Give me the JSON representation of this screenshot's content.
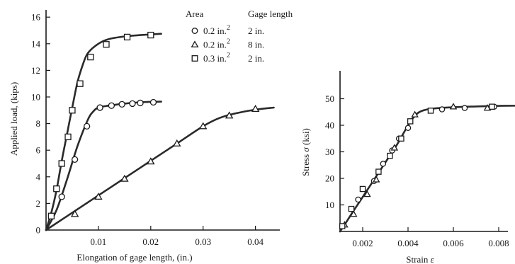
{
  "chart_data": [
    {
      "type": "line",
      "xlabel": "Elongation of gage length, (in.)",
      "ylabel": "Applied load, (kips)",
      "xlim": [
        0,
        0.044
      ],
      "ylim": [
        0,
        16
      ],
      "x_ticks": [
        0.01,
        0.02,
        0.03,
        0.04
      ],
      "x_tick_labels": [
        "0.01",
        "0.02",
        "0.03",
        "0.04"
      ],
      "y_ticks": [
        0,
        2,
        4,
        6,
        8,
        10,
        12,
        14,
        16
      ],
      "y_tick_labels": [
        "0",
        "2",
        "4",
        "6",
        "8",
        "10",
        "12",
        "14",
        "16"
      ],
      "legend": {
        "position": "top-right",
        "headers": [
          "Area",
          "Gage length"
        ],
        "entries": [
          {
            "marker": "circle",
            "area": "0.2 in.",
            "area_exp": "2",
            "gage": "2 in."
          },
          {
            "marker": "triangle",
            "area": "0.2 in.",
            "area_exp": "2",
            "gage": "8 in."
          },
          {
            "marker": "square",
            "area": "0.3 in.",
            "area_exp": "2",
            "gage": "2 in."
          }
        ]
      },
      "series": [
        {
          "marker": "square",
          "curve": [
            [
              0,
              0
            ],
            [
              0.001,
              1.3
            ],
            [
              0.002,
              3
            ],
            [
              0.003,
              5.2
            ],
            [
              0.004,
              7.2
            ],
            [
              0.005,
              9.2
            ],
            [
              0.006,
              11.1
            ],
            [
              0.007,
              12.4
            ],
            [
              0.008,
              13.3
            ],
            [
              0.01,
              14
            ],
            [
              0.012,
              14.35
            ],
            [
              0.015,
              14.55
            ],
            [
              0.018,
              14.65
            ],
            [
              0.022,
              14.75
            ]
          ],
          "points": [
            [
              0.001,
              1.05
            ],
            [
              0.002,
              3.1
            ],
            [
              0.003,
              5
            ],
            [
              0.0042,
              7
            ],
            [
              0.005,
              9
            ],
            [
              0.0065,
              11
            ],
            [
              0.0085,
              13
            ],
            [
              0.0115,
              13.95
            ],
            [
              0.0155,
              14.5
            ],
            [
              0.02,
              14.65
            ]
          ]
        },
        {
          "marker": "circle",
          "curve": [
            [
              0,
              0
            ],
            [
              0.002,
              1.5
            ],
            [
              0.004,
              3.8
            ],
            [
              0.006,
              6.3
            ],
            [
              0.008,
              8.3
            ],
            [
              0.009,
              8.9
            ],
            [
              0.01,
              9.2
            ],
            [
              0.012,
              9.35
            ],
            [
              0.015,
              9.5
            ],
            [
              0.018,
              9.6
            ],
            [
              0.022,
              9.65
            ]
          ],
          "points": [
            [
              0.003,
              2.5
            ],
            [
              0.0055,
              5.3
            ],
            [
              0.0078,
              7.8
            ],
            [
              0.0103,
              9.2
            ],
            [
              0.0125,
              9.35
            ],
            [
              0.0145,
              9.45
            ],
            [
              0.0165,
              9.5
            ],
            [
              0.018,
              9.55
            ],
            [
              0.0205,
              9.6
            ]
          ]
        },
        {
          "marker": "triangle",
          "curve": [
            [
              0,
              0
            ],
            [
              0.005,
              1.3
            ],
            [
              0.01,
              2.6
            ],
            [
              0.015,
              3.9
            ],
            [
              0.02,
              5.2
            ],
            [
              0.025,
              6.5
            ],
            [
              0.03,
              7.8
            ],
            [
              0.033,
              8.4
            ],
            [
              0.036,
              8.75
            ],
            [
              0.04,
              9.05
            ],
            [
              0.0435,
              9.2
            ]
          ],
          "points": [
            [
              0.0055,
              1.2
            ],
            [
              0.01,
              2.5
            ],
            [
              0.015,
              3.85
            ],
            [
              0.02,
              5.15
            ],
            [
              0.025,
              6.5
            ],
            [
              0.03,
              7.8
            ],
            [
              0.035,
              8.6
            ],
            [
              0.04,
              9.1
            ]
          ]
        }
      ]
    },
    {
      "type": "scatter",
      "xlabel": "Strain",
      "xlabel_symbol": "ε",
      "ylabel": "Stress",
      "ylabel_symbol": "σ",
      "ylabel_unit": "(ksi)",
      "xlim": [
        0.001,
        0.0122
      ],
      "ylim": [
        0,
        57
      ],
      "x_ticks": [
        0.002,
        0.004,
        0.006,
        0.008,
        0.01,
        0.012
      ],
      "x_tick_labels": [
        "0.002",
        "0.004",
        "0.006",
        "0.008",
        "0.010",
        "0.012"
      ],
      "y_ticks": [
        10,
        20,
        30,
        40,
        50
      ],
      "y_tick_labels": [
        "10",
        "20",
        "30",
        "40",
        "50"
      ],
      "curve": [
        [
          0.001,
          0
        ],
        [
          0.0012,
          2.5
        ],
        [
          0.0015,
          6.5
        ],
        [
          0.002,
          13
        ],
        [
          0.0025,
          19.5
        ],
        [
          0.003,
          26
        ],
        [
          0.0035,
          32.5
        ],
        [
          0.0039,
          38.5
        ],
        [
          0.0042,
          42.5
        ],
        [
          0.0045,
          45
        ],
        [
          0.005,
          46.2
        ],
        [
          0.006,
          46.8
        ],
        [
          0.007,
          47.1
        ],
        [
          0.008,
          47.3
        ],
        [
          0.009,
          47.4
        ],
        [
          0.0108,
          47.5
        ]
      ],
      "series": [
        {
          "marker": "circle",
          "points": [
            [
              0.0018,
              12
            ],
            [
              0.0025,
              19
            ],
            [
              0.0029,
              25.5
            ],
            [
              0.0033,
              30.5
            ],
            [
              0.0036,
              35
            ],
            [
              0.004,
              39
            ],
            [
              0.0055,
              46
            ],
            [
              0.0065,
              46.5
            ],
            [
              0.0078,
              47
            ],
            [
              0.009,
              47.5
            ],
            [
              0.0102,
              47.5
            ]
          ]
        },
        {
          "marker": "triangle",
          "points": [
            [
              0.0012,
              2.5
            ],
            [
              0.0016,
              6.5
            ],
            [
              0.0022,
              14
            ],
            [
              0.0026,
              19.5
            ],
            [
              0.0034,
              31.5
            ],
            [
              0.0043,
              44
            ],
            [
              0.006,
              47
            ],
            [
              0.0075,
              46.5
            ]
          ]
        },
        {
          "marker": "square",
          "points": [
            [
              0.0011,
              2
            ],
            [
              0.0015,
              8.5
            ],
            [
              0.002,
              16
            ],
            [
              0.0027,
              22.5
            ],
            [
              0.0032,
              28.5
            ],
            [
              0.0037,
              35
            ],
            [
              0.0041,
              41.5
            ],
            [
              0.005,
              45.5
            ],
            [
              0.0077,
              47
            ],
            [
              0.0099,
              47.3
            ],
            [
              0.0104,
              47.5
            ]
          ]
        }
      ]
    }
  ]
}
